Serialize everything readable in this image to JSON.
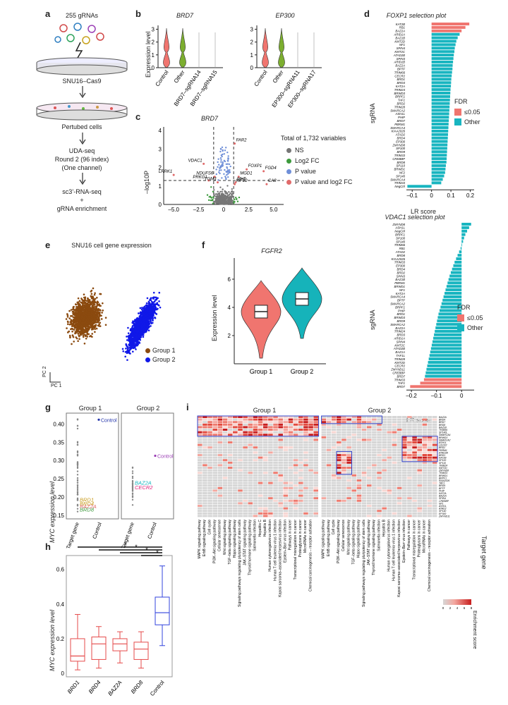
{
  "panels": {
    "a": "a",
    "b": "b",
    "c": "c",
    "d": "d",
    "e": "e",
    "f": "f",
    "g": "g",
    "h": "h",
    "i": "i"
  },
  "panel_a": {
    "top_label": "255 gRNAs",
    "cell_line": "SNU16–Cas9",
    "perturbed": "Pertubed cells",
    "uda1": "UDA-seq",
    "uda2": "Round 2 (96 index)",
    "uda3": "(One channel)",
    "seq1": "sc3’-RNA-seq",
    "seq2": "+",
    "seq3": "gRNA enrichment"
  },
  "panel_b": {
    "ylabel": "Expression level",
    "left_title": "BRD7",
    "right_title": "EP300",
    "left_cats": [
      "Control",
      "Other",
      "BRD7–sgRNA14",
      "BRD7–sgRNA15"
    ],
    "right_cats": [
      "Control",
      "Other",
      "EP300–sgRNA11",
      "EP300–sgRNA17"
    ],
    "yticks": [
      "0",
      "1",
      "2",
      "3"
    ],
    "colors": {
      "control": "#f0756f",
      "other": "#7cae2f"
    }
  },
  "panel_c": {
    "title": "BRD7",
    "ylabel": "–log10P",
    "xticks": [
      "–5.0",
      "–2.5",
      "0",
      "2.5",
      "5.0"
    ],
    "yticks": [
      "0",
      "1",
      "2",
      "3",
      "4"
    ],
    "legend_title": "Total of 1,732 variables",
    "legend": [
      {
        "label": "NS",
        "color": "#777777"
      },
      {
        "label": "Log2 FC",
        "color": "#3d9a3d"
      },
      {
        "label": "P value",
        "color": "#6f8fd8"
      },
      {
        "label": "P value and log2 FC",
        "color": "#e06a6a"
      }
    ],
    "genes": [
      "FAR2",
      "VDAC1",
      "FOXP1",
      "FGD4",
      "LRRK1",
      "NDUFS6",
      "PRKG1",
      "TGM3",
      "MGD1",
      "MH5",
      "CA8",
      "KIF22"
    ]
  },
  "panel_d1": {
    "title": "FOXP1 selection plot",
    "ylabel": "sgRNA",
    "xlabel": "LR score",
    "xticks": [
      "–0.1",
      "0",
      "0.1",
      "0.2"
    ],
    "legend_title": "FDR",
    "legend": [
      {
        "label": "≤0.05",
        "color": "#f0756f"
      },
      {
        "label": "Other",
        "color": "#18b5c0"
      }
    ],
    "genes": [
      "KAT2B",
      "RB1",
      "BAZ2A",
      "ARID1A",
      "BAZ1B",
      "KMT2D",
      "NF1",
      "SPIN4",
      "KMT2C",
      "ATAD2B",
      "SPIN3",
      "ARID1B",
      "BAZ2A",
      "BPTF",
      "TRIM66",
      "CECR2",
      "BRD1",
      "BRD3",
      "KAT2A",
      "TRIM24",
      "BRWD3",
      "BRPF1",
      "TAF1",
      "BRD2",
      "TRIM28",
      "SMARCA2",
      "ASH1L",
      "PHIP",
      "BRD7",
      "PBRM1",
      "SMARCA4",
      "KIAA2026",
      "ATAD2",
      "BRD4",
      "EP300",
      "ZMYND8",
      "SP100",
      "BRD9",
      "TRIM33",
      "CREBBP",
      "BRD8",
      "SP110",
      "BRWD1",
      "NF2",
      "SP140",
      "SMARCA4",
      "TRIM33",
      "NegCtrl"
    ],
    "values": [
      0.195,
      0.175,
      0.155,
      0.145,
      0.135,
      0.128,
      0.124,
      0.12,
      0.118,
      0.115,
      0.113,
      0.111,
      0.109,
      0.108,
      0.106,
      0.104,
      0.102,
      0.101,
      0.1,
      0.098,
      0.097,
      0.096,
      0.095,
      0.094,
      0.093,
      0.092,
      0.091,
      0.09,
      0.089,
      0.088,
      0.087,
      0.086,
      0.085,
      0.084,
      0.083,
      0.082,
      0.081,
      0.08,
      0.079,
      0.078,
      0.077,
      0.074,
      0.072,
      0.07,
      0.065,
      0.058,
      0.05,
      -0.125
    ],
    "fdr_sig_count": 3
  },
  "panel_d2": {
    "title": "VDAC1 selection plot",
    "ylabel": "sgRNA",
    "xlabel": "LR score",
    "xticks": [
      "–0.2",
      "–0.1",
      "0"
    ],
    "legend_title": "FDR",
    "legend": [
      {
        "label": "≤0.05",
        "color": "#f0756f"
      },
      {
        "label": "Other",
        "color": "#18b5c0"
      }
    ],
    "genes": [
      "ZMYND8",
      "ASH1L",
      "NegCtrl",
      "BRPF1",
      "SP100",
      "SP140",
      "TRIM66",
      "RB1",
      "ATAD2",
      "BRD8",
      "KIAA2026",
      "TRIM33",
      "EP300",
      "BRD4",
      "BRD2",
      "SPIN3",
      "BAZ1B",
      "PBRM1",
      "BRWD1",
      "NF1",
      "KAT2A",
      "SMARCA4",
      "BPTF",
      "SMARCA2",
      "BRPF1",
      "PHIP",
      "BRD1",
      "BRWD3",
      "BRD9",
      "SMARCA2",
      "BAZ2A",
      "TRIM24",
      "BRD3",
      "ARID1A",
      "SPIN4",
      "KMT2C",
      "ATAD2B",
      "BAZ1A",
      "TAF1L",
      "TRIM28",
      "KMT2D",
      "CECR2",
      "ZMYND11",
      "CREBBP",
      "BRD7",
      "TRIM33",
      "TAF1",
      "BRD7"
    ],
    "values": [
      0.038,
      0.03,
      0.022,
      0.015,
      0.01,
      0.006,
      0.002,
      -0.004,
      -0.01,
      -0.016,
      -0.022,
      -0.028,
      -0.033,
      -0.038,
      -0.043,
      -0.048,
      -0.052,
      -0.056,
      -0.06,
      -0.064,
      -0.068,
      -0.072,
      -0.076,
      -0.08,
      -0.084,
      -0.088,
      -0.092,
      -0.095,
      -0.098,
      -0.101,
      -0.104,
      -0.107,
      -0.11,
      -0.113,
      -0.116,
      -0.119,
      -0.122,
      -0.125,
      -0.128,
      -0.131,
      -0.134,
      -0.137,
      -0.14,
      -0.143,
      -0.146,
      -0.15,
      -0.165,
      -0.205
    ],
    "fdr_sig_count": 3
  },
  "panel_e": {
    "title": "SNU16 cell gene expression",
    "legend": [
      {
        "label": "Group 1",
        "color": "#8b4a0f"
      },
      {
        "label": "Group 2",
        "color": "#1018e8"
      }
    ],
    "axis_x": "PC 1",
    "axis_y": "PC 2"
  },
  "panel_f": {
    "title": "FGFR2",
    "ylabel": "Expression level",
    "categories": [
      "Group 1",
      "Group 2"
    ],
    "yticks": [
      "2",
      "4",
      "6"
    ],
    "medians": [
      3.7,
      4.6
    ],
    "colors": [
      "#f0756f",
      "#16b3ba"
    ]
  },
  "panel_g": {
    "ylabel": "MYC expression level",
    "group1": "Group 1",
    "group2": "Group 2",
    "yticks": [
      "0.15",
      "0.20",
      "0.25",
      "0.30",
      "0.35",
      "0.40"
    ],
    "ylim": [
      0.14,
      0.43
    ],
    "xcats": [
      "Target gene",
      "Control"
    ],
    "control1": {
      "label": "Control",
      "value": 0.412
    },
    "control2": {
      "label": "Control",
      "value": 0.313
    },
    "g1_genes": [
      {
        "label": "BRD1",
        "color": "#c89a1a",
        "value": 0.193
      },
      {
        "label": "BRD4",
        "color": "#c89a1a",
        "value": 0.183
      },
      {
        "label": "BAZ2A",
        "color": "#e06a6a",
        "value": 0.175
      },
      {
        "label": "BRD8",
        "color": "#3d9a3d",
        "value": 0.166
      }
    ],
    "g2_genes": [
      {
        "label": "BAZ2A",
        "color": "#18b5c0",
        "value": 0.24
      },
      {
        "label": "CECR2",
        "color": "#e0207a",
        "value": 0.227
      }
    ]
  },
  "panel_h": {
    "ylabel": "MYC expression level",
    "categories": [
      "BRD1",
      "BRD4",
      "BAZ2A",
      "BRD8",
      "Control"
    ],
    "yticks": [
      "0",
      "0.2",
      "0.4",
      "0.6"
    ],
    "ylim": [
      -0.02,
      0.68
    ],
    "boxes": [
      {
        "min": 0.02,
        "q1": 0.07,
        "median": 0.1,
        "q3": 0.2,
        "max": 0.34
      },
      {
        "min": 0.03,
        "q1": 0.08,
        "median": 0.17,
        "q3": 0.21,
        "max": 0.27
      },
      {
        "min": 0.06,
        "q1": 0.13,
        "median": 0.17,
        "q3": 0.2,
        "max": 0.24
      },
      {
        "min": 0.03,
        "q1": 0.08,
        "median": 0.14,
        "q3": 0.18,
        "max": 0.24
      },
      {
        "min": 0.16,
        "q1": 0.28,
        "median": 0.35,
        "q3": 0.44,
        "max": 0.62
      }
    ],
    "star": "*",
    "colors": {
      "target": "#e64b4b",
      "control": "#3344dd"
    }
  },
  "panel_i": {
    "group1": "Group 1",
    "group2": "Group 2",
    "ylabel": "Target gene",
    "legend_title": "Enrichment score",
    "legend_ticks": [
      "0",
      "2",
      "4",
      "6",
      "8"
    ],
    "target_genes": [
      "BAZ2A",
      "BRD4",
      "BRD7",
      "BRD8",
      "BAZ1B",
      "TRIM66",
      "SP140L",
      "SMARCA4",
      "BRWD3",
      "SMARCA2",
      "ASH1L",
      "CECR2",
      "BRD2",
      "PBRM1",
      "ATAD2B",
      "BRD1",
      "KAT2B",
      "SP100",
      "SP110",
      "TRIM24",
      "KMT2D",
      "ZMYND8",
      "TRIM33",
      "BRWD1",
      "BRPF1",
      "KIAA2026",
      "TAF1",
      "BRD9",
      "BPTF",
      "PHIP",
      "KAT2A",
      "BAZ1A",
      "SPIN4",
      "CREBBP",
      "NF1",
      "ASH1L",
      "ATAD2",
      "SP140",
      "EP300",
      "ZMYND11"
    ],
    "pathways_g1": [
      "MAPK signaling pathway",
      "ErbB signaling pathway",
      "Cell cycle",
      "PI3K–Akt signaling pathway",
      "Cellular senescence",
      "Wnt signaling pathway",
      "TGF–beta signaling pathway",
      "Hippo signaling pathway",
      "Signaling pathways regulating pluripotency of stem cells",
      "JAK–STAT signaling pathway",
      "Thyroid hormone signaling pathway",
      "Salmonella infection",
      "Hepatitis C",
      "Hepatitis B",
      "Human cytomegalovirus infection",
      "Human T cell leukemia virus 1 infection",
      "Kaposi sarcoma–associated herpesvirus infection",
      "Epstein–Barr virus infection",
      "Pathways in cancer",
      "Transcriptional misregulation in cancer",
      "Proteoglycans in cancer",
      "MicroRNAs in cancer",
      "Chemical carcinogenesis – receptor activation"
    ],
    "pathways_g2": [
      "MAPK signaling pathway",
      "ErbB signaling pathway",
      "Cell cycle",
      "PI3K–Akt signaling pathway",
      "Cellular senescence",
      "Wnt signaling pathway",
      "TGF–beta signaling pathway",
      "Hippo signaling pathway",
      "Signaling pathways regulating pluripotency of stem cells",
      "JAK–STAT signaling pathway",
      "Thyroid hormone signaling pathway",
      "Salmonella infection",
      "Hepatitis B",
      "Human cytomegalovirus infection",
      "Human T cell leukemia virus 1 infection",
      "Kaposi sarcoma–associated herpesvirus infection",
      "Epstein–Barr virus infection",
      "Pathways in cancer",
      "Transcriptional misregulation in cancer",
      "Proteoglycans in cancer",
      "MicroRNAs in cancer",
      "Chemical carcinogenesis – receptor activation"
    ]
  },
  "chart_data": [
    {
      "type": "bar",
      "title": "FOXP1 selection plot",
      "categories_ref": "panel_d1.genes",
      "values_ref": "panel_d1.values",
      "xlabel": "LR score",
      "ylabel": "sgRNA"
    },
    {
      "type": "bar",
      "title": "VDAC1 selection plot",
      "categories_ref": "panel_d2.genes",
      "values_ref": "panel_d2.values",
      "xlabel": "LR score",
      "ylabel": "sgRNA"
    },
    {
      "type": "scatter",
      "title": "MYC expression level",
      "ylim": [
        0.14,
        0.43
      ]
    },
    {
      "type": "box",
      "title": "MYC expression level",
      "categories": [
        "BRD1",
        "BRD4",
        "BAZ2A",
        "BRD8",
        "Control"
      ]
    },
    {
      "type": "heatmap",
      "title": "Enrichment score",
      "legend_ticks": [
        "0",
        "2",
        "4",
        "6",
        "8"
      ]
    }
  ]
}
